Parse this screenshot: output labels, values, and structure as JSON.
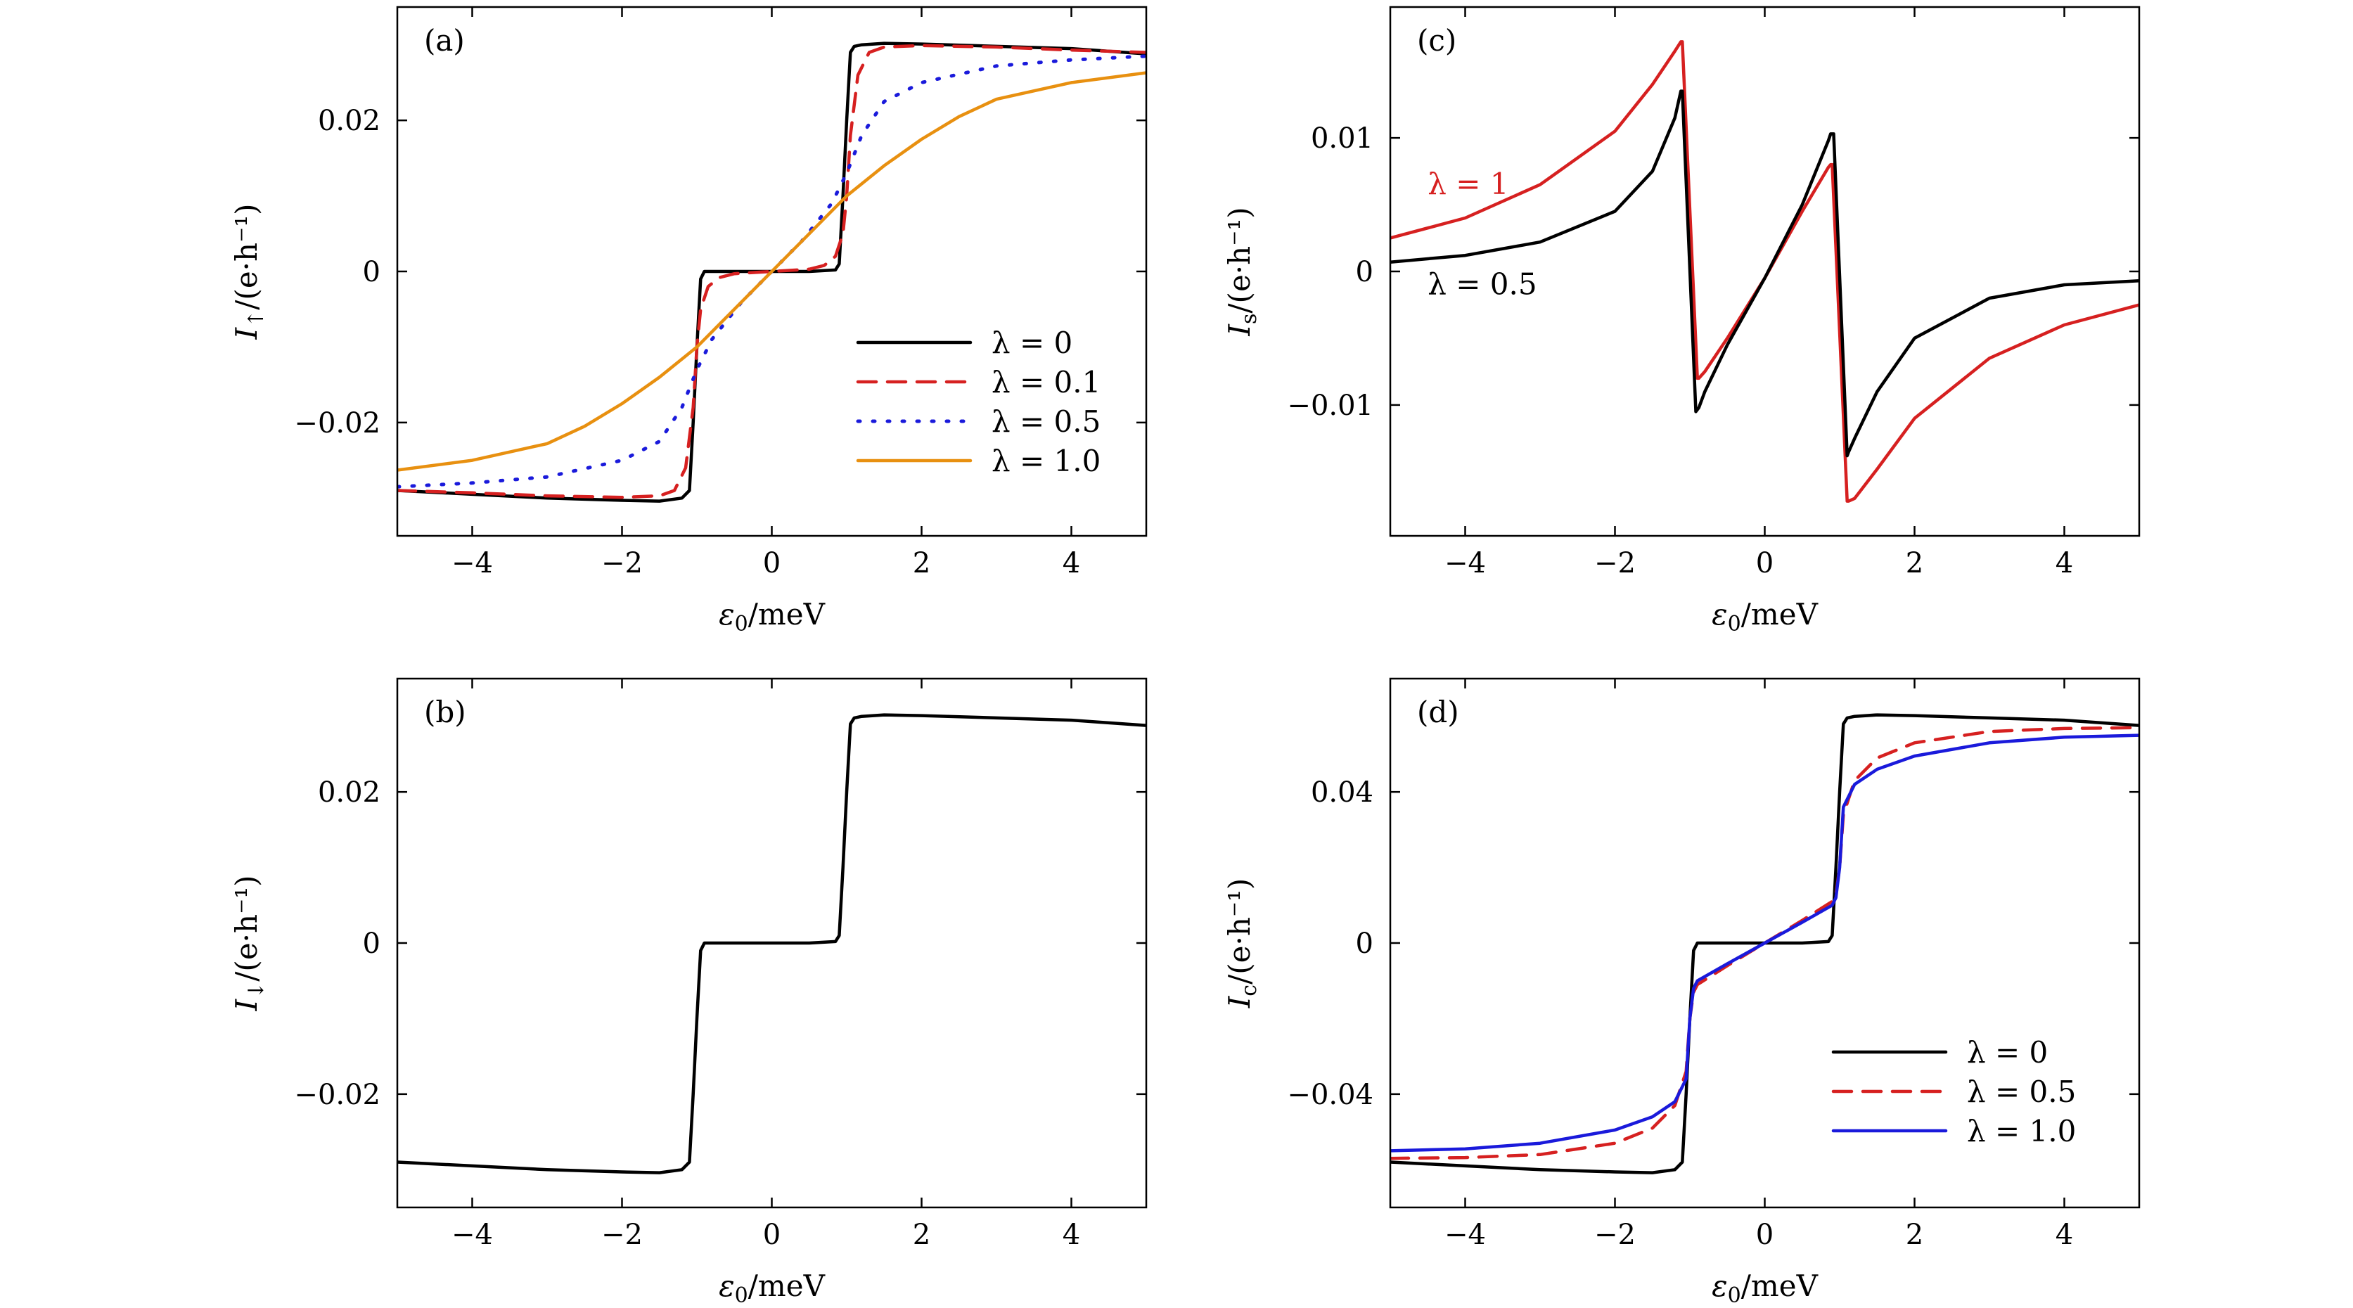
{
  "chart_data": [
    {
      "type": "line",
      "panel": "(a)",
      "xlabel": "ε0/meV",
      "ylabel": "I↑/(e·h⁻¹)",
      "xlim": [
        -5,
        5
      ],
      "ylim": [
        -0.035,
        0.035
      ],
      "xticks": [
        -4,
        -2,
        0,
        2,
        4
      ],
      "xtick_labels": [
        "−4",
        "−2",
        "0",
        "2",
        "4"
      ],
      "yticks": [
        -0.02,
        0,
        0.02
      ],
      "ytick_labels": [
        "−0.02",
        "0",
        "0.02"
      ],
      "legend_position": "lower-right",
      "series": [
        {
          "name": "λ = 0",
          "color": "#000000",
          "dash": "solid",
          "x": [
            -5,
            -4,
            -3,
            -2,
            -1.5,
            -1.2,
            -1.1,
            -1.05,
            -1.0,
            -0.95,
            -0.9,
            -0.5,
            0,
            0.5,
            0.85,
            0.9,
            0.95,
            1.0,
            1.05,
            1.1,
            1.2,
            1.5,
            2,
            3,
            4,
            5
          ],
          "y": [
            -0.029,
            -0.0295,
            -0.03,
            -0.0303,
            -0.0304,
            -0.03,
            -0.029,
            -0.02,
            -0.01,
            -0.001,
            0.0,
            0.0,
            0.0,
            0.0,
            0.0002,
            0.001,
            0.01,
            0.02,
            0.029,
            0.0298,
            0.03,
            0.0302,
            0.0301,
            0.0298,
            0.0295,
            0.0288
          ]
        },
        {
          "name": "λ = 0.1",
          "color": "#d62020",
          "dash": "dashed",
          "x": [
            -5,
            -4,
            -3,
            -2,
            -1.5,
            -1.3,
            -1.15,
            -1.05,
            -1.0,
            -0.95,
            -0.85,
            -0.7,
            -0.5,
            0,
            0.5,
            0.7,
            0.85,
            0.95,
            1.0,
            1.05,
            1.15,
            1.3,
            1.5,
            2,
            3,
            4,
            5
          ],
          "y": [
            -0.029,
            -0.0293,
            -0.0297,
            -0.0299,
            -0.0297,
            -0.029,
            -0.026,
            -0.018,
            -0.01,
            -0.005,
            -0.002,
            -0.0008,
            -0.0003,
            0.0,
            0.0003,
            0.0008,
            0.002,
            0.005,
            0.01,
            0.018,
            0.026,
            0.029,
            0.0297,
            0.0299,
            0.0297,
            0.0293,
            0.029
          ]
        },
        {
          "name": "λ = 0.5",
          "color": "#1a1adb",
          "dash": "dotted",
          "x": [
            -5,
            -4,
            -3,
            -2,
            -1.5,
            -1.2,
            -1.0,
            -0.8,
            -0.6,
            -0.4,
            -0.2,
            0,
            0.2,
            0.4,
            0.6,
            0.8,
            1.0,
            1.2,
            1.5,
            2,
            3,
            4,
            5
          ],
          "y": [
            -0.0285,
            -0.028,
            -0.0272,
            -0.025,
            -0.0225,
            -0.018,
            -0.013,
            -0.009,
            -0.0065,
            -0.004,
            -0.002,
            0.0,
            0.002,
            0.004,
            0.0065,
            0.009,
            0.013,
            0.018,
            0.0225,
            0.025,
            0.0272,
            0.028,
            0.0285
          ]
        },
        {
          "name": "λ = 1.0",
          "color": "#e89010",
          "dash": "solid",
          "x": [
            -5,
            -4,
            -3,
            -2.5,
            -2,
            -1.5,
            -1,
            -0.5,
            0,
            0.5,
            1,
            1.5,
            2,
            2.5,
            3,
            4,
            5
          ],
          "y": [
            -0.0263,
            -0.025,
            -0.0228,
            -0.0205,
            -0.0175,
            -0.014,
            -0.01,
            -0.005,
            0.0,
            0.005,
            0.01,
            0.014,
            0.0175,
            0.0205,
            0.0228,
            0.025,
            0.0263
          ]
        }
      ]
    },
    {
      "type": "line",
      "panel": "(b)",
      "xlabel": "ε0/meV",
      "ylabel": "I↓/(e·h⁻¹)",
      "xlim": [
        -5,
        5
      ],
      "ylim": [
        -0.035,
        0.035
      ],
      "xticks": [
        -4,
        -2,
        0,
        2,
        4
      ],
      "xtick_labels": [
        "−4",
        "−2",
        "0",
        "2",
        "4"
      ],
      "yticks": [
        -0.02,
        0,
        0.02
      ],
      "ytick_labels": [
        "−0.02",
        "0",
        "0.02"
      ],
      "series": [
        {
          "color": "#000000",
          "dash": "solid",
          "x": [
            -5,
            -4,
            -3,
            -2,
            -1.5,
            -1.2,
            -1.1,
            -1.05,
            -1.0,
            -0.95,
            -0.9,
            -0.5,
            0,
            0.5,
            0.85,
            0.9,
            0.95,
            1.0,
            1.05,
            1.1,
            1.2,
            1.5,
            2,
            3,
            4,
            5
          ],
          "y": [
            -0.029,
            -0.0295,
            -0.03,
            -0.0303,
            -0.0304,
            -0.03,
            -0.029,
            -0.02,
            -0.01,
            -0.001,
            0.0,
            0.0,
            0.0,
            0.0,
            0.0002,
            0.001,
            0.01,
            0.02,
            0.029,
            0.0298,
            0.03,
            0.0302,
            0.0301,
            0.0298,
            0.0295,
            0.0288
          ]
        }
      ]
    },
    {
      "type": "line",
      "panel": "(c)",
      "xlabel": "ε0/meV",
      "ylabel": "Is/(e·h⁻¹)",
      "xlim": [
        -5,
        5
      ],
      "ylim": [
        -0.0198,
        0.0198
      ],
      "xticks": [
        -4,
        -2,
        0,
        2,
        4
      ],
      "xtick_labels": [
        "−4",
        "−2",
        "0",
        "2",
        "4"
      ],
      "yticks": [
        -0.01,
        0,
        0.01
      ],
      "ytick_labels": [
        "−0.01",
        "0",
        "0.01"
      ],
      "annotations": [
        {
          "text": "λ = 1",
          "color": "#d62020",
          "x": -4.5,
          "y": 0.0058
        },
        {
          "text": "λ = 0.5",
          "color": "#000000",
          "x": -4.5,
          "y": -0.0017
        }
      ],
      "series": [
        {
          "name": "λ = 1",
          "color": "#d62020",
          "dash": "solid",
          "x": [
            -5,
            -4,
            -3,
            -2,
            -1.5,
            -1.2,
            -1.12,
            -1.1,
            -0.9,
            -0.88,
            -0.8,
            -0.5,
            0,
            0.5,
            0.85,
            0.88,
            0.9,
            1.1,
            1.12,
            1.2,
            1.5,
            2,
            3,
            4,
            5
          ],
          "y": [
            0.0025,
            0.004,
            0.0065,
            0.0105,
            0.014,
            0.0165,
            0.0172,
            0.0172,
            -0.008,
            -0.008,
            -0.0075,
            -0.005,
            -0.0005,
            0.0045,
            0.0078,
            0.008,
            0.008,
            -0.0172,
            -0.0172,
            -0.017,
            -0.0148,
            -0.011,
            -0.0065,
            -0.004,
            -0.0025
          ]
        },
        {
          "name": "λ = 0.5",
          "color": "#000000",
          "dash": "solid",
          "x": [
            -5,
            -4,
            -3,
            -2,
            -1.5,
            -1.2,
            -1.12,
            -1.1,
            -0.92,
            -0.88,
            -0.8,
            -0.5,
            0,
            0.5,
            0.85,
            0.88,
            0.92,
            1.1,
            1.12,
            1.2,
            1.5,
            2,
            3,
            4,
            5
          ],
          "y": [
            0.0007,
            0.0012,
            0.0022,
            0.0045,
            0.0075,
            0.0115,
            0.0135,
            0.0135,
            -0.0105,
            -0.0102,
            -0.009,
            -0.0055,
            -0.0005,
            0.005,
            0.0098,
            0.0103,
            0.0103,
            -0.0138,
            -0.0135,
            -0.0125,
            -0.009,
            -0.005,
            -0.002,
            -0.001,
            -0.0007
          ]
        }
      ]
    },
    {
      "type": "line",
      "panel": "(d)",
      "xlabel": "ε0/meV",
      "ylabel": "Ic/(e·h⁻¹)",
      "xlim": [
        -5,
        5
      ],
      "ylim": [
        -0.07,
        0.07
      ],
      "xticks": [
        -4,
        -2,
        0,
        2,
        4
      ],
      "xtick_labels": [
        "−4",
        "−2",
        "0",
        "2",
        "4"
      ],
      "yticks": [
        -0.04,
        0,
        0.04
      ],
      "ytick_labels": [
        "−0.04",
        "0",
        "0.04"
      ],
      "legend_position": "lower-right",
      "series": [
        {
          "name": "λ = 0",
          "color": "#000000",
          "dash": "solid",
          "x": [
            -5,
            -4,
            -3,
            -2,
            -1.5,
            -1.2,
            -1.1,
            -1.05,
            -1.0,
            -0.95,
            -0.9,
            -0.5,
            0,
            0.5,
            0.85,
            0.9,
            0.95,
            1.0,
            1.05,
            1.1,
            1.2,
            1.5,
            2,
            3,
            4,
            5
          ],
          "y": [
            -0.058,
            -0.059,
            -0.06,
            -0.0606,
            -0.0608,
            -0.06,
            -0.058,
            -0.04,
            -0.02,
            -0.002,
            0.0,
            0.0,
            0.0,
            0.0,
            0.0004,
            0.002,
            0.02,
            0.04,
            0.058,
            0.0596,
            0.06,
            0.0604,
            0.0602,
            0.0596,
            0.059,
            0.0576
          ]
        },
        {
          "name": "λ = 0.5",
          "color": "#d62020",
          "dash": "dashed",
          "x": [
            -5,
            -4,
            -3,
            -2,
            -1.5,
            -1.2,
            -1.05,
            -1.0,
            -0.95,
            -0.9,
            -0.5,
            0,
            0.5,
            0.9,
            0.95,
            1.0,
            1.05,
            1.2,
            1.5,
            2,
            3,
            4,
            5
          ],
          "y": [
            -0.057,
            -0.0568,
            -0.056,
            -0.053,
            -0.049,
            -0.043,
            -0.034,
            -0.02,
            -0.013,
            -0.011,
            -0.006,
            0.0,
            0.006,
            0.011,
            0.013,
            0.02,
            0.034,
            0.043,
            0.049,
            0.053,
            0.056,
            0.0568,
            0.057
          ]
        },
        {
          "name": "λ = 1.0",
          "color": "#1a1adb",
          "dash": "solid",
          "x": [
            -5,
            -4,
            -3,
            -2,
            -1.5,
            -1.2,
            -1.05,
            -1.0,
            -0.95,
            -0.9,
            -0.5,
            0,
            0.5,
            0.9,
            0.95,
            1.0,
            1.05,
            1.2,
            1.5,
            2,
            3,
            4,
            5
          ],
          "y": [
            -0.055,
            -0.0545,
            -0.053,
            -0.0495,
            -0.046,
            -0.042,
            -0.036,
            -0.02,
            -0.012,
            -0.01,
            -0.0055,
            0.0,
            0.0055,
            0.01,
            0.012,
            0.02,
            0.036,
            0.042,
            0.046,
            0.0495,
            0.053,
            0.0545,
            0.055
          ]
        }
      ]
    }
  ]
}
